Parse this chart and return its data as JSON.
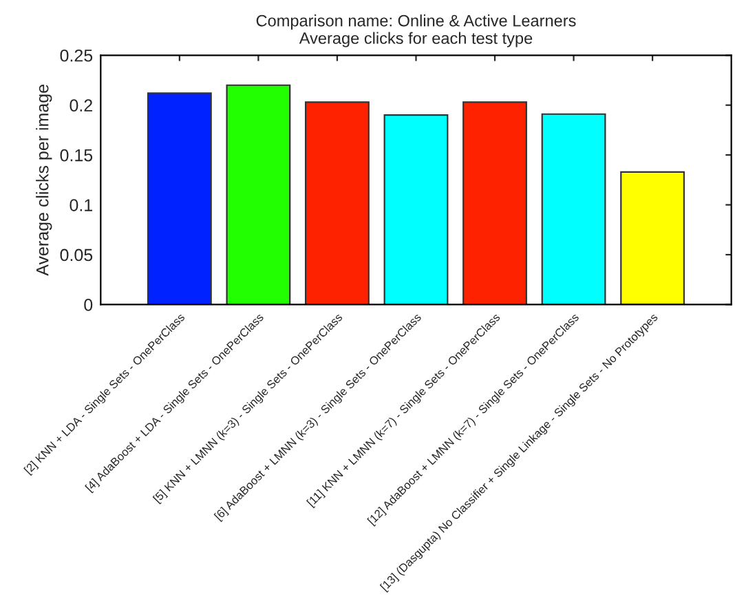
{
  "chart_data": {
    "type": "bar",
    "title": "Comparison name: Online & Active Learners\nAverage clicks for each test type",
    "ylabel": "Average clicks per image",
    "categories": [
      "[2] KNN + LDA - Single Sets - OnePerClass",
      "[4] AdaBoost + LDA - Single Sets - OnePerClass",
      "[5] KNN + LMNN (k=3) - Single Sets - OnePerClass",
      "[6] AdaBoost + LMNN (k=3) - Single Sets - OnePerClass",
      "[11] KNN + LMNN (k=7) - Single Sets - OnePerClass",
      "[12] AdaBoost + LMNN (k=7) - Single Sets - OnePerClass",
      "[13] (Dasgupta) No Classifier + Single Linkage - Single Sets - No Prototypes"
    ],
    "values": [
      0.212,
      0.22,
      0.203,
      0.19,
      0.203,
      0.191,
      0.133
    ],
    "colors": [
      "#0022ff",
      "#22ff00",
      "#ff2200",
      "#00ffff",
      "#ff2200",
      "#00ffff",
      "#ffff00"
    ],
    "ylim": [
      0,
      0.25
    ],
    "yticks": [
      0,
      0.05,
      0.1,
      0.15,
      0.2,
      0.25
    ],
    "grid": false
  }
}
